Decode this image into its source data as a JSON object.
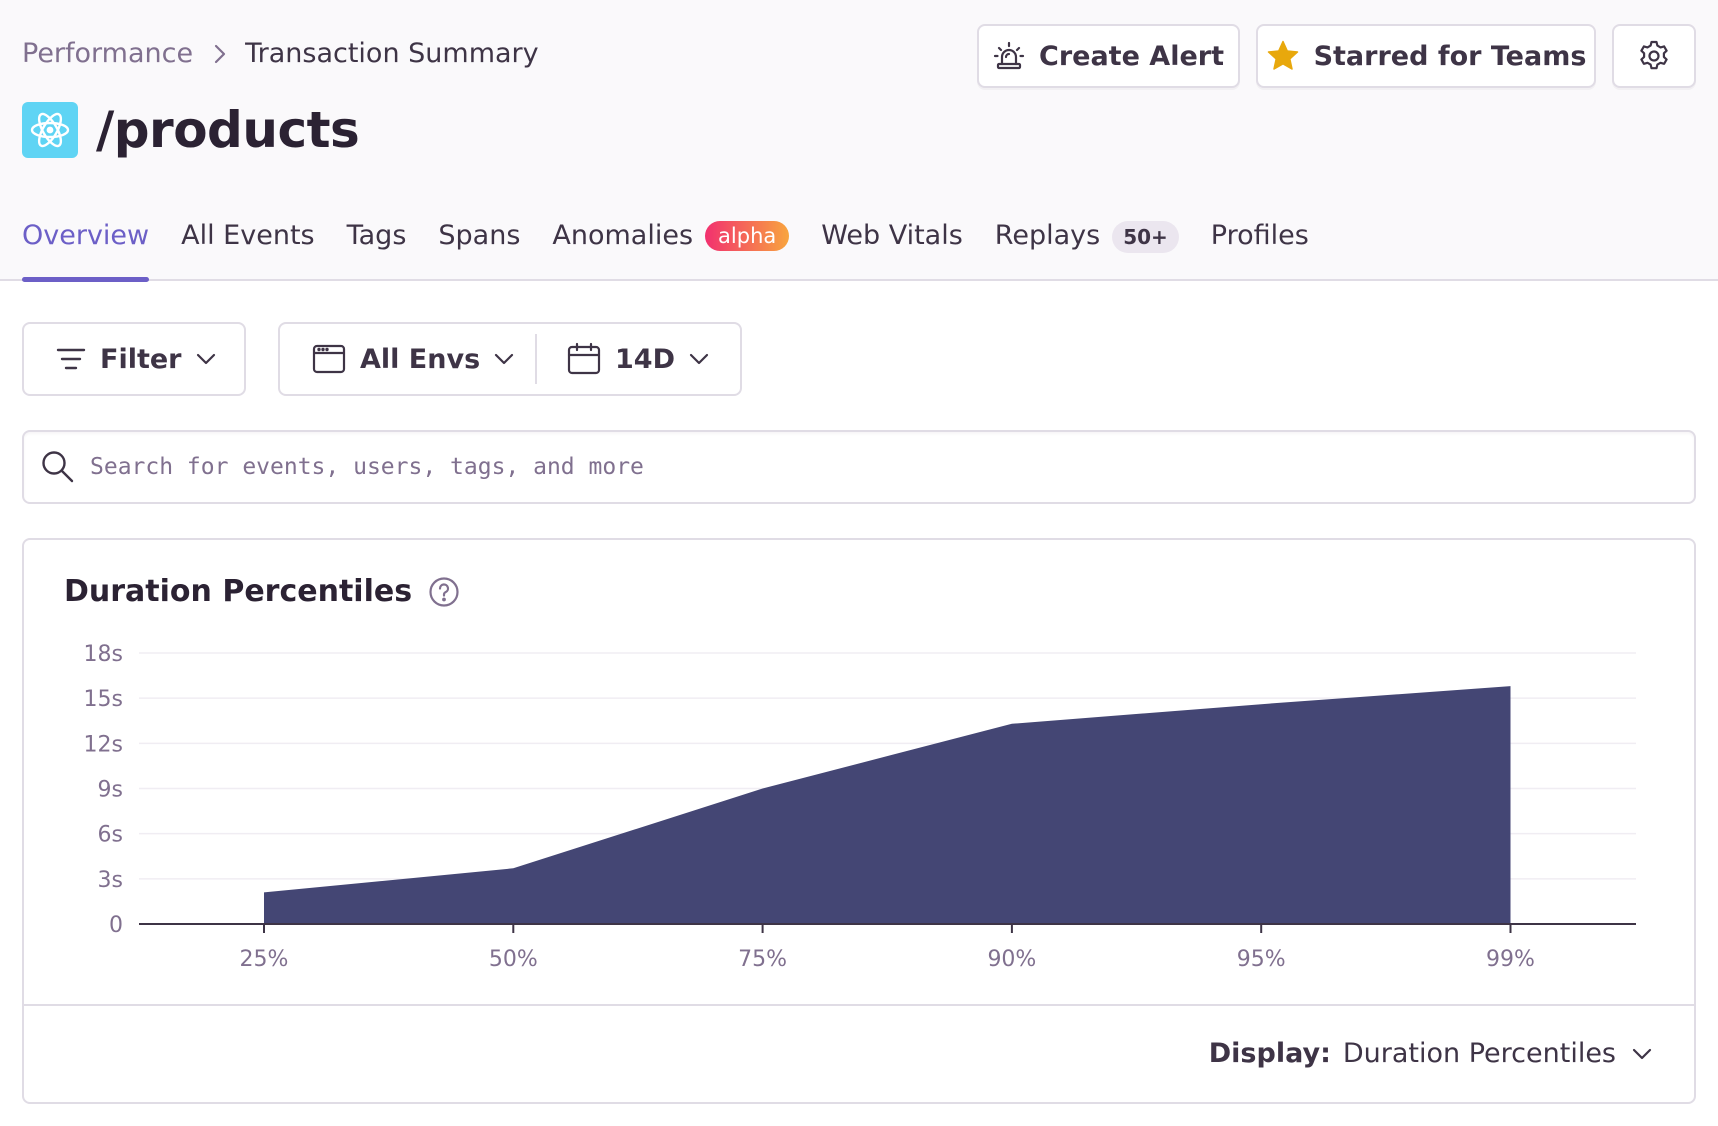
{
  "breadcrumb": {
    "parent": "Performance",
    "current": "Transaction Summary"
  },
  "title": "/products",
  "platform_icon": "react-icon",
  "header_buttons": {
    "create_alert": "Create Alert",
    "starred": "Starred for Teams"
  },
  "tabs": [
    {
      "label": "Overview",
      "active": true
    },
    {
      "label": "All Events"
    },
    {
      "label": "Tags"
    },
    {
      "label": "Spans"
    },
    {
      "label": "Anomalies",
      "badge": "alpha"
    },
    {
      "label": "Web Vitals"
    },
    {
      "label": "Replays",
      "badge": "50+"
    },
    {
      "label": "Profiles"
    }
  ],
  "filters": {
    "filter_label": "Filter",
    "environment": "All Envs",
    "period": "14D"
  },
  "search": {
    "placeholder": "Search for events, users, tags, and more"
  },
  "panel": {
    "title": "Duration Percentiles",
    "display_label": "Display:",
    "display_value": "Duration Percentiles"
  },
  "colors": {
    "accent": "#6c5fc7",
    "area_fill": "#444674",
    "star": "#e8a80c"
  },
  "chart_data": {
    "type": "area",
    "categories": [
      "25%",
      "50%",
      "75%",
      "90%",
      "95%",
      "99%"
    ],
    "values": [
      2.1,
      3.7,
      9.0,
      13.3,
      14.6,
      15.8
    ],
    "y_ticks": [
      "0",
      "3s",
      "6s",
      "9s",
      "12s",
      "15s",
      "18s"
    ],
    "ylim": [
      0,
      18
    ],
    "y_unit": "s",
    "grid": true,
    "legend": "none"
  }
}
